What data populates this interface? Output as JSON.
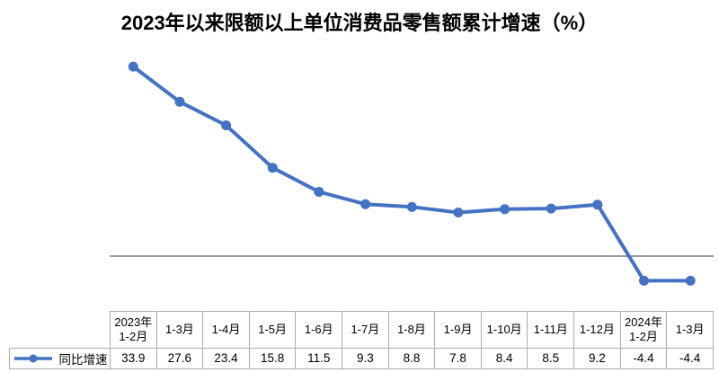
{
  "page": {
    "background": "#FFFFFF"
  },
  "colors": {
    "series_line": "#4472C4",
    "zero_line": "#8C8C8C",
    "table_border": "#ACACAC",
    "text": "#000000"
  },
  "chart_data": {
    "type": "line",
    "title": "2023年以来限额以上单位消费品零售额累计增速（%）",
    "categories": [
      "2023年\n1-2月",
      "1-3月",
      "1-4月",
      "1-5月",
      "1-6月",
      "1-7月",
      "1-8月",
      "1-9月",
      "1-10月",
      "1-11月",
      "1-12月",
      "2024年\n1-2月",
      "1-3月"
    ],
    "series": [
      {
        "name": "同比增速",
        "values": [
          33.9,
          27.6,
          23.4,
          15.8,
          11.5,
          9.3,
          8.8,
          7.8,
          8.4,
          8.5,
          9.2,
          -4.4,
          -4.4
        ],
        "color": "#4472C4",
        "marker": "circle"
      }
    ],
    "xlabel": "",
    "ylabel": "",
    "ylim": [
      -12,
      36
    ],
    "grid": false,
    "zero_axis_line": true,
    "y_axis_labels_shown": false,
    "legend_position": "data-table-left",
    "data_table_shown": true
  }
}
